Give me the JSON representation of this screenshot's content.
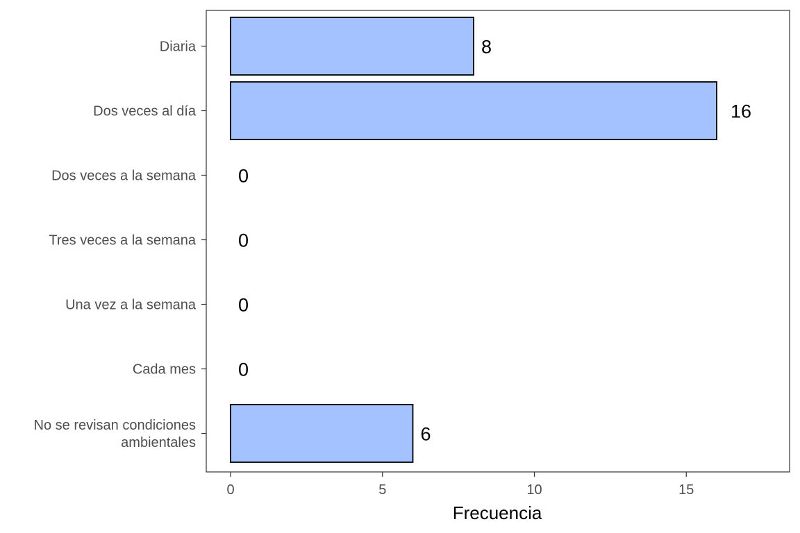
{
  "chart_data": {
    "type": "bar",
    "orientation": "horizontal",
    "categories": [
      "Diaria",
      "Dos veces al día",
      "Dos veces a la semana",
      "Tres veces a la semana",
      "Una vez a la semana",
      "Cada mes",
      "No se revisan condiciones ambientales"
    ],
    "category_lines": [
      [
        "Diaria"
      ],
      [
        "Dos veces al día"
      ],
      [
        "Dos veces a la semana"
      ],
      [
        "Tres veces a la semana"
      ],
      [
        "Una vez a la semana"
      ],
      [
        "Cada mes"
      ],
      [
        "No se revisan condiciones",
        "ambientales"
      ]
    ],
    "values": [
      8,
      16,
      0,
      0,
      0,
      0,
      6
    ],
    "value_labels": [
      "8",
      "16",
      "0",
      "0",
      "0",
      "0",
      "6"
    ],
    "xlabel": "Frecuencia",
    "ylabel": "",
    "xlim": [
      -0.8,
      18.4
    ],
    "xticks": [
      0,
      5,
      10,
      15
    ],
    "xtick_labels": [
      "0",
      "5",
      "10",
      "15"
    ],
    "grid": false,
    "legend": "none",
    "bar_color": "#a4c2ff",
    "bar_outline": "#000000"
  }
}
